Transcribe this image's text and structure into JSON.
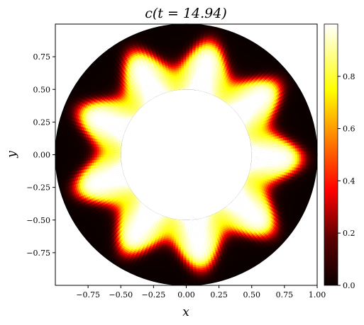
{
  "chart_data": {
    "type": "heatmap",
    "title": "c(t = 14.94)",
    "xlabel": "x",
    "ylabel": "y",
    "xlim": [
      -1.0,
      1.0
    ],
    "ylim": [
      -1.0,
      1.0
    ],
    "grid": false,
    "colormap": "hot",
    "domain": {
      "shape": "annulus",
      "inner_radius": 0.5,
      "outer_radius": 1.0,
      "center": [
        0,
        0
      ]
    },
    "pattern": {
      "lobes": 9,
      "inner_value": 1.0,
      "outer_value": 0.0
    },
    "x_ticks": [
      "−0.75",
      "−0.50",
      "−0.25",
      "0.00",
      "0.25",
      "0.50",
      "0.75",
      "1.00"
    ],
    "x_tick_values": [
      -0.75,
      -0.5,
      -0.25,
      0.0,
      0.25,
      0.5,
      0.75,
      1.0
    ],
    "y_ticks": [
      "0.75",
      "0.50",
      "0.25",
      "0.00",
      "−0.25",
      "−0.50",
      "−0.75"
    ],
    "y_tick_values": [
      0.75,
      0.5,
      0.25,
      0.0,
      -0.25,
      -0.5,
      -0.75
    ],
    "colorbar": {
      "range": [
        0.0,
        1.0
      ],
      "ticks": [
        "0.0",
        "0.2",
        "0.4",
        "0.6",
        "0.8"
      ],
      "tick_values": [
        0.0,
        0.2,
        0.4,
        0.6,
        0.8
      ]
    }
  }
}
